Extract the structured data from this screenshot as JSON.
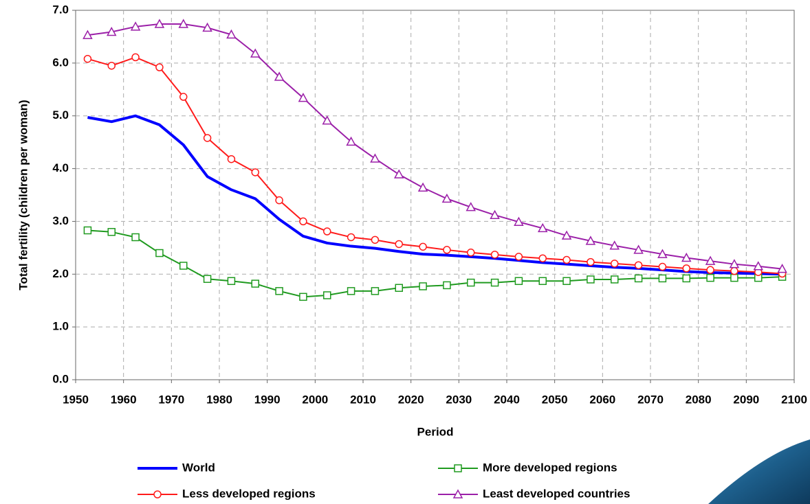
{
  "chart_data": {
    "type": "line",
    "x_label": "Period",
    "y_label": "Total fertility (children per woman)",
    "x": [
      1952.5,
      1957.5,
      1962.5,
      1967.5,
      1972.5,
      1977.5,
      1982.5,
      1987.5,
      1992.5,
      1997.5,
      2002.5,
      2007.5,
      2012.5,
      2017.5,
      2022.5,
      2027.5,
      2032.5,
      2037.5,
      2042.5,
      2047.5,
      2052.5,
      2057.5,
      2062.5,
      2067.5,
      2072.5,
      2077.5,
      2082.5,
      2087.5,
      2092.5,
      2097.5
    ],
    "xlim": [
      1950,
      2100
    ],
    "xticks": [
      1950,
      1960,
      1970,
      1980,
      1990,
      2000,
      2010,
      2020,
      2030,
      2040,
      2050,
      2060,
      2070,
      2080,
      2090,
      2100
    ],
    "ylim": [
      0,
      7
    ],
    "yticks": [
      {
        "value": 0,
        "label": "0.0"
      },
      {
        "value": 1,
        "label": "1.0"
      },
      {
        "value": 2,
        "label": "2.0"
      },
      {
        "value": 3,
        "label": "3.0"
      },
      {
        "value": 4,
        "label": "4.0"
      },
      {
        "value": 5,
        "label": "5.0"
      },
      {
        "value": 6,
        "label": "6.0"
      },
      {
        "value": 7,
        "label": "7.0"
      }
    ],
    "grid": true,
    "series": [
      {
        "name": "World",
        "color": "#0000ff",
        "marker": "none",
        "linewidth": 4,
        "values": [
          4.97,
          4.89,
          5.0,
          4.83,
          4.45,
          3.85,
          3.6,
          3.43,
          3.04,
          2.72,
          2.59,
          2.53,
          2.49,
          2.43,
          2.38,
          2.36,
          2.33,
          2.3,
          2.26,
          2.22,
          2.19,
          2.16,
          2.13,
          2.11,
          2.08,
          2.05,
          2.03,
          2.02,
          2.01,
          2.0
        ]
      },
      {
        "name": "More developed regions",
        "color": "#1f9a1f",
        "marker": "square",
        "linewidth": 2,
        "values": [
          2.83,
          2.8,
          2.7,
          2.4,
          2.16,
          1.91,
          1.87,
          1.82,
          1.68,
          1.57,
          1.6,
          1.68,
          1.68,
          1.74,
          1.77,
          1.79,
          1.84,
          1.84,
          1.87,
          1.87,
          1.87,
          1.9,
          1.9,
          1.92,
          1.92,
          1.92,
          1.93,
          1.93,
          1.93,
          1.95
        ]
      },
      {
        "name": "Less developed regions",
        "color": "#ff1a1a",
        "marker": "circle",
        "linewidth": 2,
        "values": [
          6.08,
          5.95,
          6.11,
          5.92,
          5.36,
          4.58,
          4.18,
          3.93,
          3.4,
          3.0,
          2.81,
          2.7,
          2.65,
          2.57,
          2.52,
          2.46,
          2.41,
          2.37,
          2.33,
          2.3,
          2.27,
          2.23,
          2.2,
          2.17,
          2.14,
          2.11,
          2.08,
          2.06,
          2.04,
          2.01
        ]
      },
      {
        "name": "Least developed countries",
        "color": "#9b1fa8",
        "marker": "triangle",
        "linewidth": 2,
        "values": [
          6.53,
          6.59,
          6.69,
          6.74,
          6.74,
          6.67,
          6.54,
          6.18,
          5.74,
          5.34,
          4.91,
          4.51,
          4.19,
          3.89,
          3.64,
          3.43,
          3.27,
          3.12,
          2.99,
          2.87,
          2.73,
          2.63,
          2.54,
          2.46,
          2.38,
          2.31,
          2.25,
          2.19,
          2.15,
          2.1
        ]
      }
    ]
  }
}
